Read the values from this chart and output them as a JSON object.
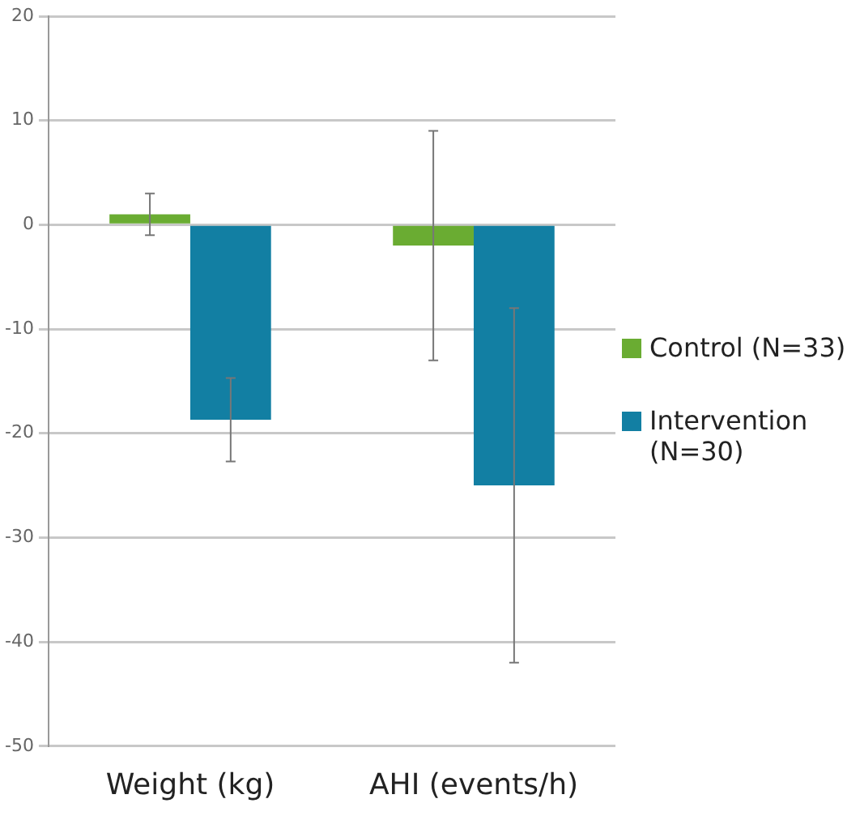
{
  "chart_data": {
    "type": "bar",
    "categories": [
      "Weight (kg)",
      "AHI (events/h)"
    ],
    "series": [
      {
        "name": "Control (N=33)",
        "color": "#6aac32",
        "values": [
          1,
          -2
        ],
        "errors": [
          2,
          11
        ]
      },
      {
        "name": "Intervention (N=30)",
        "color": "#127fa3",
        "values": [
          -18.7,
          -25
        ],
        "errors": [
          4,
          17
        ]
      }
    ],
    "ylim": [
      -50,
      20
    ],
    "yticks": [
      -50,
      -40,
      -30,
      -20,
      -10,
      0,
      10,
      20
    ],
    "grid": "y",
    "legend": "right"
  }
}
